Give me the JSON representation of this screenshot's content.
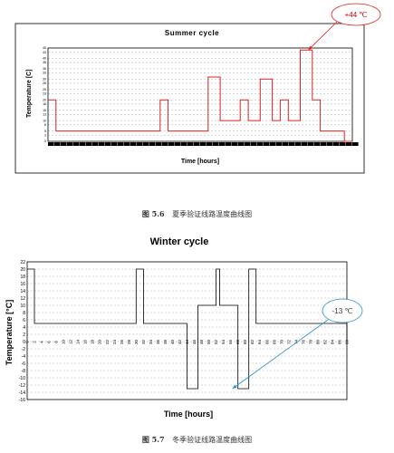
{
  "figure1": {
    "caption_number": "图 5.6",
    "caption_text": "夏季验证线路温度曲线图",
    "callout": "+44 ℃",
    "chart_data": {
      "type": "line",
      "title": "Summer cycle",
      "xlabel": "Time [hours]",
      "ylabel": "Temperature [C]",
      "ylim": [
        0,
        45
      ],
      "y_ticks": [
        45,
        43,
        40,
        38,
        35,
        33,
        30,
        28,
        25,
        23,
        20,
        18,
        15,
        13,
        10,
        8,
        5,
        3,
        0
      ],
      "grid": true,
      "x": [
        0,
        2,
        2,
        28,
        28,
        30,
        30,
        40,
        40,
        43,
        43,
        48,
        48,
        50,
        50,
        53,
        53,
        56,
        56,
        58,
        58,
        60,
        60,
        63,
        63,
        66,
        66,
        68,
        68,
        70,
        70,
        74,
        74,
        76
      ],
      "y": [
        20,
        20,
        5,
        5,
        20,
        20,
        5,
        5,
        31,
        31,
        10,
        10,
        20,
        20,
        10,
        10,
        30,
        30,
        10,
        10,
        20,
        20,
        10,
        10,
        44,
        44,
        20,
        20,
        5,
        5,
        5,
        5,
        0,
        0
      ]
    }
  },
  "figure2": {
    "caption_number": "图 5.7",
    "caption_text": "冬季验证线路温度曲线图",
    "callout": "-13 ℃",
    "chart_data": {
      "type": "line",
      "title": "Winter cycle",
      "xlabel": "Time [hours]",
      "ylabel": "Temperature [°C]",
      "ylim": [
        -16,
        22
      ],
      "y_ticks": [
        22,
        20,
        18,
        16,
        14,
        12,
        10,
        8,
        6,
        4,
        2,
        0,
        -2,
        -4,
        -6,
        -8,
        -10,
        -12,
        -14,
        -16
      ],
      "x_ticks": [
        0,
        2,
        4,
        6,
        8,
        10,
        12,
        14,
        16,
        18,
        20,
        22,
        24,
        26,
        28,
        30,
        32,
        34,
        36,
        38,
        40,
        42,
        44,
        46,
        48,
        50,
        52,
        54,
        56,
        58,
        60,
        62,
        64,
        66,
        68,
        70,
        72,
        74,
        76,
        78,
        80,
        82,
        84,
        86,
        88
      ],
      "grid": true,
      "x": [
        0,
        2,
        2,
        30,
        30,
        32,
        32,
        44,
        44,
        47,
        47,
        52,
        52,
        53,
        53,
        55,
        55,
        58,
        58,
        61,
        61,
        63,
        63,
        88,
        88
      ],
      "y": [
        20,
        20,
        5,
        5,
        20,
        20,
        5,
        5,
        -13,
        -13,
        10,
        10,
        20,
        20,
        10,
        10,
        10,
        10,
        -13,
        -13,
        20,
        20,
        5,
        5,
        0
      ]
    }
  }
}
